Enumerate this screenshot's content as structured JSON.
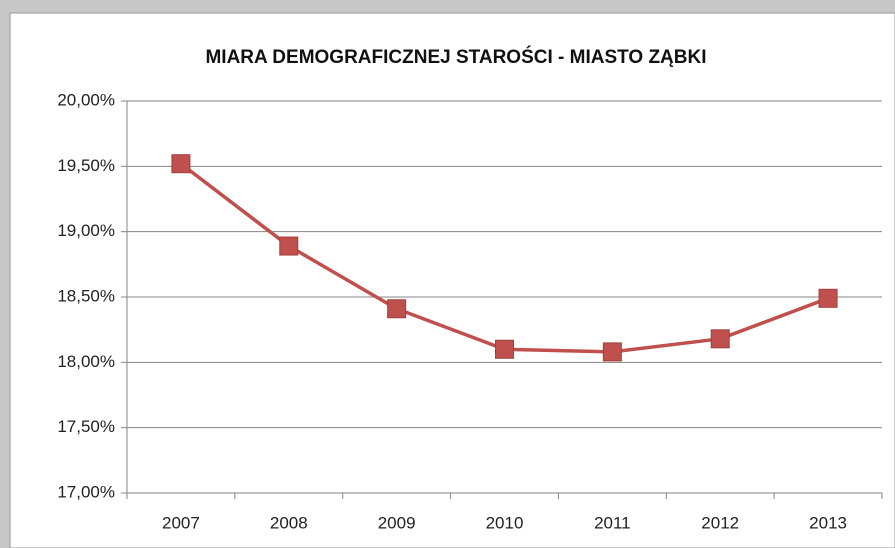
{
  "chart_data": {
    "type": "line",
    "title": "MIARA DEMOGRAFICZNEJ STAROŚCI - MIASTO ZĄBKI",
    "categories": [
      "2007",
      "2008",
      "2009",
      "2010",
      "2011",
      "2012",
      "2013"
    ],
    "series": [
      {
        "name": "Miara demograficznej starości",
        "color": "#c0504d",
        "values": [
          19.52,
          18.89,
          18.41,
          18.1,
          18.08,
          18.18,
          18.49
        ]
      }
    ],
    "ylim": [
      17,
      20
    ],
    "yticks": [
      {
        "value": 17,
        "label": "17,00%"
      },
      {
        "value": 17.5,
        "label": "17,50%"
      },
      {
        "value": 18,
        "label": "18,00%"
      },
      {
        "value": 18.5,
        "label": "18,50%"
      },
      {
        "value": 19,
        "label": "19,00%"
      },
      {
        "value": 19.5,
        "label": "19,50%"
      },
      {
        "value": 20,
        "label": "20,00%"
      }
    ],
    "grid": true,
    "legend": false
  }
}
